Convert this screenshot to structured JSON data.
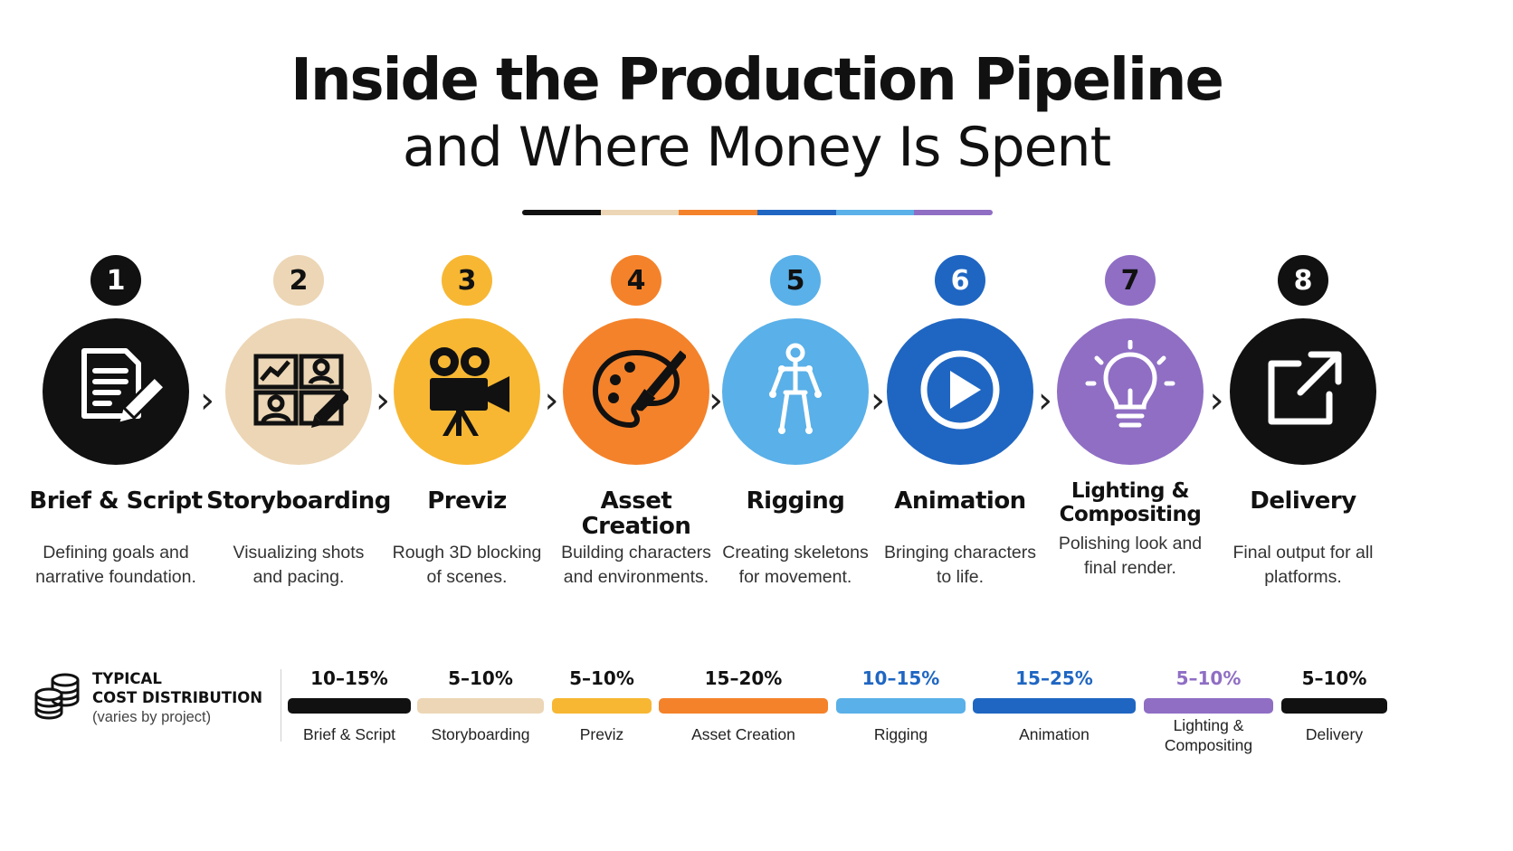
{
  "header": {
    "title_line1": "Inside the Production Pipeline",
    "title_line2_prefix": "and Where Money Is Spent"
  },
  "colors": {
    "black": "#111111",
    "beige": "#ecd6b5",
    "yellow": "#f7b733",
    "orange": "#f4822a",
    "light_blue": "#5ab0e8",
    "blue": "#1f66c2",
    "purple": "#8f6ec4"
  },
  "underline_colors": [
    "#111111",
    "#ecd6b5",
    "#f4822a",
    "#1f66c2",
    "#5ab0e8",
    "#8f6ec4"
  ],
  "steps": [
    {
      "number": "1",
      "title": "Brief & Script",
      "description": "Defining goals and narrative foundation.",
      "icon": "document-pencil-icon",
      "color": "#111111",
      "num_bg": "#111111",
      "num_fg": "#ffffff",
      "cost": "10–15%",
      "cost_label": "Brief & Script",
      "cost_color": "#111111"
    },
    {
      "number": "2",
      "title": "Storyboarding",
      "description": "Visualizing shots and pacing.",
      "icon": "storyboard-icon",
      "color": "#ecd6b5",
      "num_bg": "#ecd6b5",
      "num_fg": "#111111",
      "cost": "5–10%",
      "cost_label": "Storyboarding",
      "cost_color": "#111111"
    },
    {
      "number": "3",
      "title": "Previz",
      "description": "Rough 3D blocking of scenes.",
      "icon": "film-camera-icon",
      "color": "#f7b733",
      "num_bg": "#f7b733",
      "num_fg": "#111111",
      "cost": "5–10%",
      "cost_label": "Previz",
      "cost_color": "#111111"
    },
    {
      "number": "4",
      "title": "Asset Creation",
      "description": "Building characters and environments.",
      "icon": "palette-brush-icon",
      "color": "#f4822a",
      "num_bg": "#f4822a",
      "num_fg": "#111111",
      "cost": "15–20%",
      "cost_label": "Asset Creation",
      "cost_color": "#111111"
    },
    {
      "number": "5",
      "title": "Rigging",
      "description": "Creating skeletons for movement.",
      "icon": "skeleton-icon",
      "color": "#5ab0e8",
      "num_bg": "#5ab0e8",
      "num_fg": "#111111",
      "cost": "10–15%",
      "cost_label": "Rigging",
      "cost_color": "#1f66c2"
    },
    {
      "number": "6",
      "title": "Animation",
      "description": "Bringing characters to life.",
      "icon": "play-icon",
      "color": "#1f66c2",
      "num_bg": "#1f66c2",
      "num_fg": "#ffffff",
      "cost": "15–25%",
      "cost_label": "Animation",
      "cost_color": "#1f66c2"
    },
    {
      "number": "7",
      "title": "Lighting & Compositing",
      "description": "Polishing look and final render.",
      "icon": "lightbulb-icon",
      "color": "#8f6ec4",
      "num_bg": "#8f6ec4",
      "num_fg": "#111111",
      "cost": "5–10%",
      "cost_label": "Lighting & Compositing",
      "cost_color": "#8f6ec4"
    },
    {
      "number": "8",
      "title": "Delivery",
      "description": "Final output for all platforms.",
      "icon": "external-link-icon",
      "color": "#111111",
      "num_bg": "#111111",
      "num_fg": "#ffffff",
      "cost": "5–10%",
      "cost_label": "Delivery",
      "cost_color": "#111111"
    }
  ],
  "cost_section": {
    "title_line1": "TYPICAL",
    "title_line2": "COST DISTRIBUTION",
    "note": "(varies by project)",
    "icon": "coins-stack-icon"
  }
}
